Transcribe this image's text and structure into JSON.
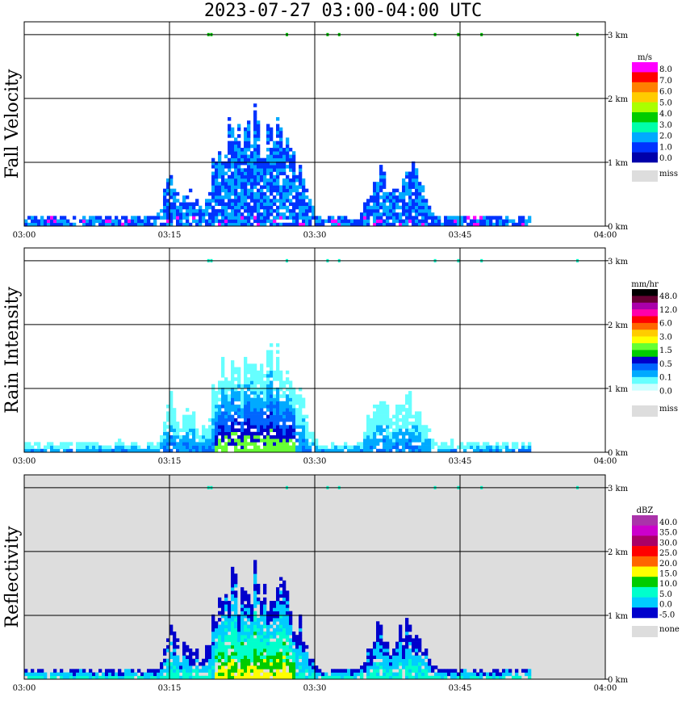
{
  "title": "2023-07-27  03:00-04:00 UTC",
  "chart_data": [
    {
      "type": "heatmap",
      "ylabel": "Fall Velocity",
      "x_ticks": [
        "03:00",
        "03:15",
        "03:30",
        "03:45",
        "04:00"
      ],
      "y_ticks": [
        "0 km",
        "1 km",
        "2 km",
        "3 km"
      ],
      "ylim_km": [
        0,
        3.2
      ],
      "grid": true,
      "background": "#ffffff",
      "colorbar": {
        "unit": "m/s",
        "labels": [
          "8.0",
          "7.0",
          "6.0",
          "5.0",
          "4.0",
          "3.0",
          "2.0",
          "1.0",
          "0.0",
          "miss"
        ],
        "colors": [
          "#ff00ff",
          "#ff0000",
          "#ff7f00",
          "#ffcc00",
          "#aaff00",
          "#00cc00",
          "#00ffaa",
          "#00aaff",
          "#0033ff",
          "#0000aa"
        ],
        "miss_color": "#dddddd"
      },
      "echo_description": "convective echoes extending to ~1.5 km between 03:20 and 03:50, shallow layer below 0.2 km"
    },
    {
      "type": "heatmap",
      "ylabel": "Rain Intensity",
      "x_ticks": [
        "03:00",
        "03:15",
        "03:30",
        "03:45",
        "04:00"
      ],
      "y_ticks": [
        "0 km",
        "1 km",
        "2 km",
        "3 km"
      ],
      "ylim_km": [
        0,
        3.2
      ],
      "grid": true,
      "background": "#ffffff",
      "colorbar": {
        "unit": "mm/hr",
        "labels": [
          "48.0",
          "12.0",
          "6.0",
          "3.0",
          "1.5",
          "0.5",
          "0.1",
          "0.0",
          "miss"
        ],
        "colors": [
          "#000000",
          "#660033",
          "#aa00aa",
          "#ff00aa",
          "#ff0000",
          "#ff6600",
          "#ffcc00",
          "#ffff00",
          "#66ff33",
          "#00cc00",
          "#0000cc",
          "#0066ff",
          "#00aaff",
          "#66ffff",
          "#ccffff",
          "#ffffff"
        ],
        "miss_color": "#dddddd"
      }
    },
    {
      "type": "heatmap",
      "ylabel": "Reflectivity",
      "x_ticks": [
        "03:00",
        "03:15",
        "03:30",
        "03:45",
        "04:00"
      ],
      "y_ticks": [
        "0 km",
        "1 km",
        "2 km",
        "3 km"
      ],
      "ylim_km": [
        0,
        3.2
      ],
      "grid": true,
      "background": "#dddddd",
      "colorbar": {
        "unit": "dBZ",
        "labels": [
          "40.0",
          "35.0",
          "30.0",
          "25.0",
          "20.0",
          "15.0",
          "10.0",
          "5.0",
          "0.0",
          "-5.0",
          "none"
        ],
        "colors": [
          "#aa33aa",
          "#cc00cc",
          "#aa0066",
          "#ff0000",
          "#ff6600",
          "#ffff00",
          "#00cc00",
          "#00ffcc",
          "#00ccff",
          "#0000cc"
        ],
        "miss_color": "#dddddd"
      }
    }
  ]
}
